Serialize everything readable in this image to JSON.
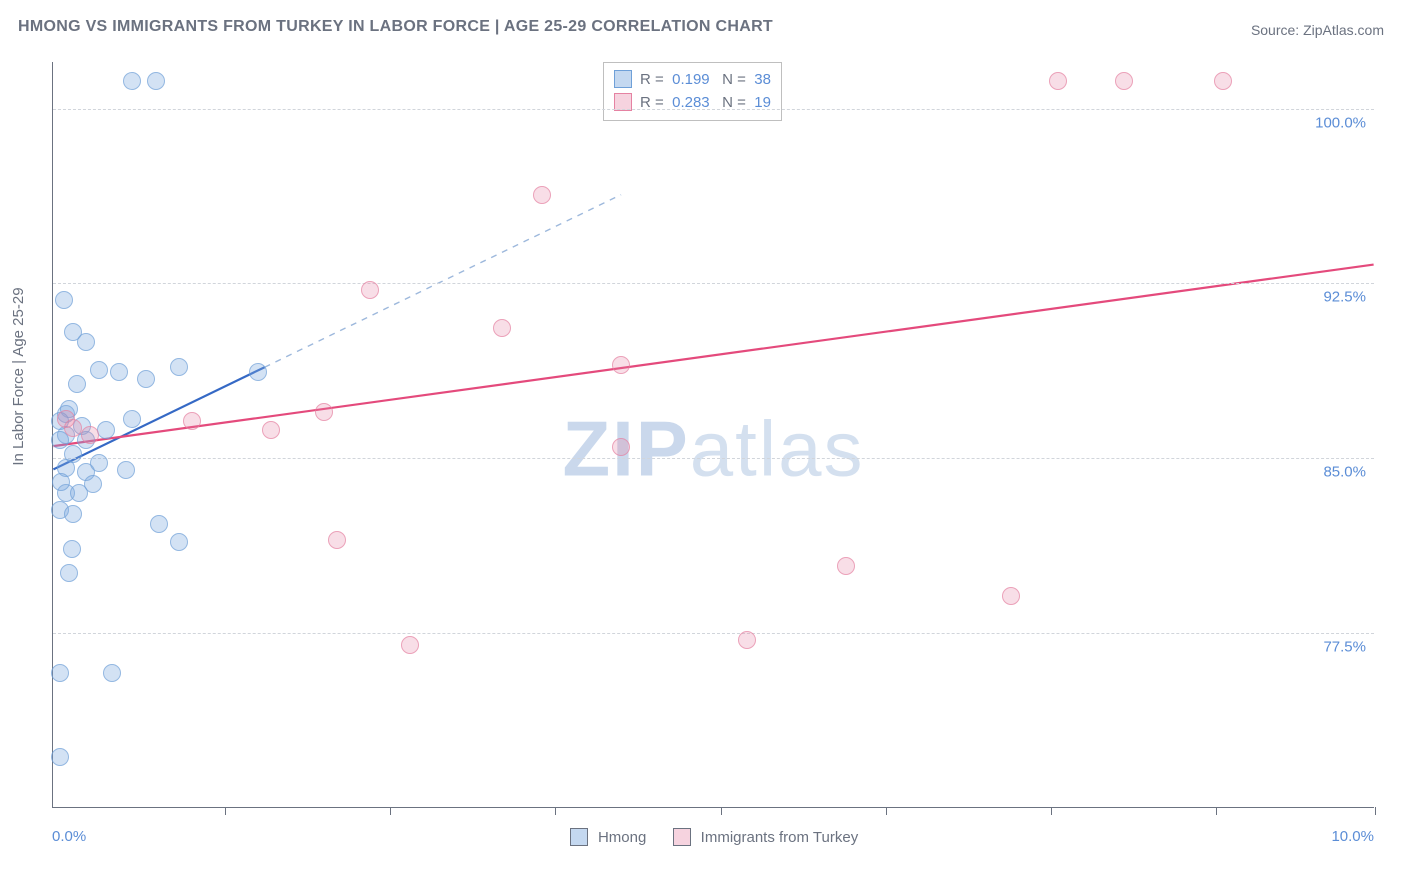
{
  "title": "HMONG VS IMMIGRANTS FROM TURKEY IN LABOR FORCE | AGE 25-29 CORRELATION CHART",
  "source": "Source: ZipAtlas.com",
  "ylabel": "In Labor Force | Age 25-29",
  "watermark_a": "ZIP",
  "watermark_b": "atlas",
  "chart": {
    "type": "scatter",
    "xlim": [
      0,
      10
    ],
    "ylim": [
      70,
      102
    ],
    "xticks": [
      1.3,
      2.55,
      3.8,
      5.05,
      6.3,
      7.55,
      8.8,
      10.0
    ],
    "xzero_label": "0.0%",
    "xmax_label": "10.0%",
    "yticks": [
      {
        "v": 77.5,
        "label": "77.5%"
      },
      {
        "v": 85.0,
        "label": "85.0%"
      },
      {
        "v": 92.5,
        "label": "92.5%"
      },
      {
        "v": 100.0,
        "label": "100.0%"
      }
    ],
    "series": [
      {
        "key": "a",
        "name": "Hmong",
        "fill": "rgba(125,169,222,0.45)",
        "stroke": "#6fa0d8",
        "trend_stroke": "#3569c5",
        "trend_dash_after": 1.6,
        "R": "0.199",
        "N": "38",
        "trend": {
          "x1": 0.0,
          "y1": 84.5,
          "x2": 4.3,
          "y2": 96.3
        },
        "points": [
          [
            0.1,
            84.6
          ],
          [
            0.1,
            86.0
          ],
          [
            0.15,
            85.2
          ],
          [
            0.1,
            83.5
          ],
          [
            0.05,
            82.8
          ],
          [
            0.08,
            91.8
          ],
          [
            0.15,
            90.4
          ],
          [
            0.25,
            90.0
          ],
          [
            0.25,
            84.4
          ],
          [
            0.35,
            84.8
          ],
          [
            0.3,
            83.9
          ],
          [
            0.2,
            83.5
          ],
          [
            0.15,
            82.6
          ],
          [
            0.55,
            84.5
          ],
          [
            0.35,
            88.8
          ],
          [
            0.5,
            88.7
          ],
          [
            0.7,
            88.4
          ],
          [
            0.95,
            88.9
          ],
          [
            0.8,
            82.2
          ],
          [
            0.95,
            81.4
          ],
          [
            0.6,
            101.2
          ],
          [
            0.78,
            101.2
          ],
          [
            1.55,
            88.7
          ],
          [
            0.12,
            80.1
          ],
          [
            0.05,
            75.8
          ],
          [
            0.45,
            75.8
          ],
          [
            0.05,
            72.2
          ],
          [
            0.6,
            86.7
          ],
          [
            0.1,
            86.9
          ],
          [
            0.22,
            86.4
          ],
          [
            0.12,
            87.1
          ],
          [
            0.05,
            85.8
          ],
          [
            0.14,
            81.1
          ],
          [
            0.06,
            84.0
          ],
          [
            0.4,
            86.2
          ],
          [
            0.25,
            85.8
          ],
          [
            0.05,
            86.6
          ],
          [
            0.18,
            88.2
          ]
        ]
      },
      {
        "key": "b",
        "name": "Immigrants from Turkey",
        "fill": "rgba(229,130,162,0.35)",
        "stroke": "#e582a2",
        "trend_stroke": "#e44a7c",
        "R": "0.283",
        "N": "19",
        "trend": {
          "x1": 0.0,
          "y1": 85.5,
          "x2": 10.0,
          "y2": 93.3
        },
        "points": [
          [
            0.15,
            86.3
          ],
          [
            0.28,
            86.0
          ],
          [
            0.1,
            86.7
          ],
          [
            1.05,
            86.6
          ],
          [
            1.65,
            86.2
          ],
          [
            2.05,
            87.0
          ],
          [
            2.15,
            81.5
          ],
          [
            2.7,
            77.0
          ],
          [
            2.4,
            92.2
          ],
          [
            3.4,
            90.6
          ],
          [
            3.7,
            96.3
          ],
          [
            4.3,
            89.0
          ],
          [
            4.3,
            85.5
          ],
          [
            5.25,
            77.2
          ],
          [
            6.0,
            80.4
          ],
          [
            7.25,
            79.1
          ],
          [
            8.1,
            101.2
          ],
          [
            8.85,
            101.2
          ],
          [
            7.6,
            101.2
          ]
        ]
      }
    ]
  },
  "legend_top": [
    {
      "key": "a",
      "R_label": "R",
      "eq": "=",
      "N_label": "N"
    },
    {
      "key": "b",
      "R_label": "R",
      "eq": "=",
      "N_label": "N"
    }
  ],
  "legend_bottom": {
    "a": "Hmong",
    "b": "Immigrants from Turkey"
  }
}
